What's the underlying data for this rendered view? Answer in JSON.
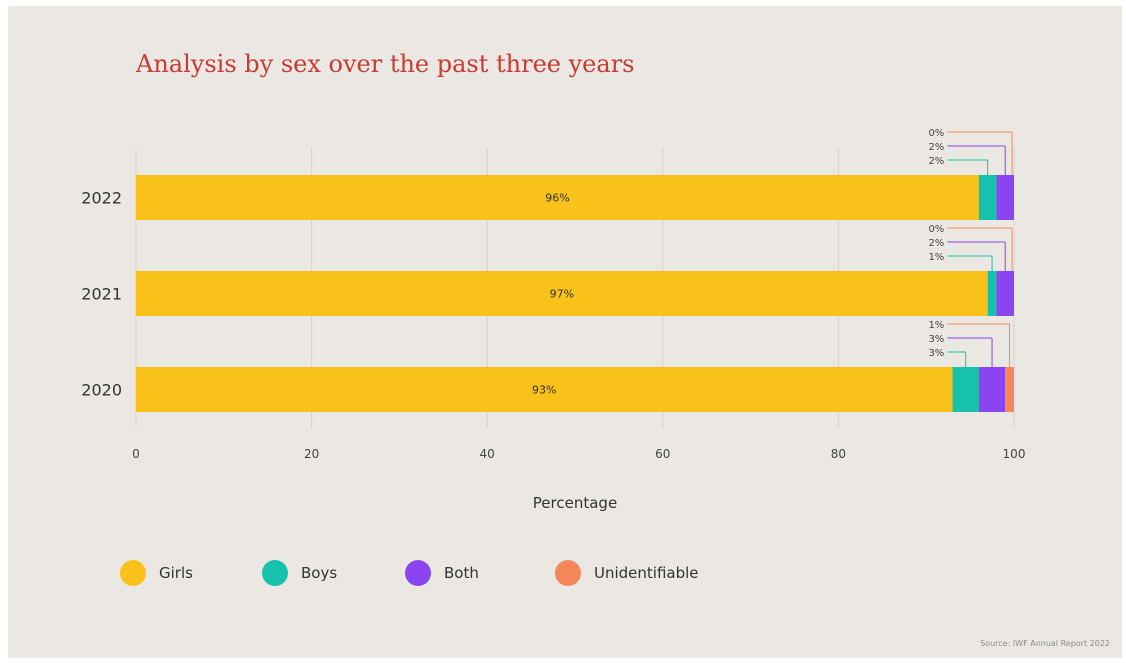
{
  "chart_data": {
    "type": "bar",
    "orientation": "horizontal",
    "stacked": true,
    "title": "Analysis by sex over the past three years",
    "xlabel": "Percentage",
    "ylabel": "",
    "xlim": [
      0,
      100
    ],
    "x_ticks": [
      "0",
      "20",
      "40",
      "60",
      "80",
      "100"
    ],
    "grid": "vertical",
    "categories": [
      "2022",
      "2021",
      "2020"
    ],
    "series": [
      {
        "name": "Girls",
        "color": "#f9c21a",
        "values": [
          96,
          97,
          93
        ],
        "labels": [
          "96%",
          "97%",
          "93%"
        ]
      },
      {
        "name": "Boys",
        "color": "#17c2ac",
        "values": [
          2,
          1,
          3
        ],
        "labels": [
          "2%",
          "1%",
          "3%"
        ]
      },
      {
        "name": "Both",
        "color": "#8a45f0",
        "values": [
          2,
          2,
          3
        ],
        "labels": [
          "2%",
          "2%",
          "3%"
        ]
      },
      {
        "name": "Unidentifiable",
        "color": "#f5885a",
        "values": [
          0,
          0,
          1
        ],
        "labels": [
          "0%",
          "0%",
          "1%"
        ]
      }
    ],
    "legend_position": "bottom",
    "source": "Source: IWF Annual Report 2022"
  }
}
